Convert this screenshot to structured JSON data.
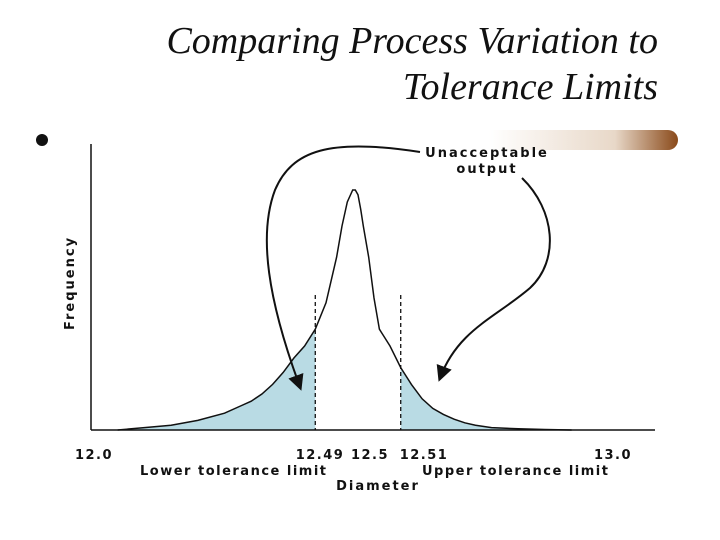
{
  "slide": {
    "title_line1": "Comparing Process Variation to",
    "title_line2": "Tolerance Limits"
  },
  "chart_data": {
    "type": "area",
    "title": "",
    "xlabel": "Diameter",
    "ylabel": "Frequency",
    "xlim": [
      12.0,
      13.0
    ],
    "x_ticks": [
      {
        "value": 12.0,
        "label": "12.0"
      },
      {
        "value": 12.49,
        "label": "12.49"
      },
      {
        "value": 12.5,
        "label": "12.5"
      },
      {
        "value": 12.51,
        "label": "12.51"
      },
      {
        "value": 13.0,
        "label": "13.0"
      }
    ],
    "series": [
      {
        "x": [
          12.05,
          12.1,
          12.15,
          12.2,
          12.25,
          12.28,
          12.3,
          12.32,
          12.34,
          12.36,
          12.38,
          12.4,
          12.42,
          12.44,
          12.46,
          12.47,
          12.48,
          12.49,
          12.495,
          12.5,
          12.505,
          12.51,
          12.52,
          12.53,
          12.54,
          12.56,
          12.58,
          12.6,
          12.62,
          12.64,
          12.66,
          12.68,
          12.7,
          12.72,
          12.75,
          12.8,
          12.85,
          12.9
        ],
        "y": [
          0,
          0.01,
          0.02,
          0.04,
          0.07,
          0.1,
          0.12,
          0.15,
          0.19,
          0.24,
          0.3,
          0.35,
          0.42,
          0.53,
          0.72,
          0.85,
          0.95,
          1.0,
          1.0,
          0.98,
          0.92,
          0.85,
          0.72,
          0.55,
          0.42,
          0.35,
          0.26,
          0.19,
          0.13,
          0.09,
          0.065,
          0.045,
          0.03,
          0.02,
          0.01,
          0.005,
          0.002,
          0
        ]
      }
    ],
    "tolerance_limits": [
      {
        "value": 12.42,
        "label": "Lower tolerance limit"
      },
      {
        "value": 12.58,
        "label": "Upper tolerance limit"
      }
    ],
    "shaded_regions": [
      "below lower tolerance limit",
      "above upper tolerance limit"
    ],
    "shade_color": "#b9dbe4",
    "annotation": {
      "line1": "Unacceptable",
      "line2": "output"
    },
    "grid": false,
    "legend": "none"
  }
}
